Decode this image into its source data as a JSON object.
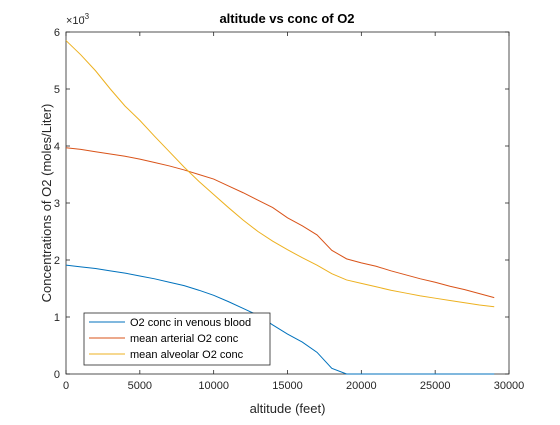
{
  "chart_data": {
    "type": "line",
    "title": "altitude vs conc of O2",
    "xlabel": "altitude (feet)",
    "ylabel": "Concentrations of O2 (moles/Liter)",
    "exponent_label": "×10",
    "exponent_power": "-3",
    "xlim": [
      0,
      30000
    ],
    "ylim": [
      0,
      6
    ],
    "xticks": [
      0,
      5000,
      10000,
      15000,
      20000,
      25000,
      30000
    ],
    "xtick_labels": [
      "0",
      "5000",
      "10000",
      "15000",
      "20000",
      "25000",
      "30000"
    ],
    "yticks": [
      0,
      1,
      2,
      3,
      4,
      5,
      6
    ],
    "ytick_labels": [
      "0",
      "1",
      "2",
      "3",
      "4",
      "5",
      "6"
    ],
    "grid": false,
    "legend_position": "bottom-left",
    "series": [
      {
        "name": "O2 conc in venous blood",
        "color": "#0072BD",
        "x": [
          0,
          1000,
          2000,
          3000,
          4000,
          5000,
          6000,
          7000,
          8000,
          9000,
          10000,
          11000,
          12000,
          13000,
          14000,
          15000,
          16000,
          17000,
          18000,
          19000,
          20000,
          21000,
          22000,
          23000,
          24000,
          25000,
          26000,
          27000,
          28000,
          29000
        ],
        "y": [
          1.91,
          1.88,
          1.85,
          1.81,
          1.77,
          1.72,
          1.67,
          1.61,
          1.55,
          1.47,
          1.38,
          1.27,
          1.15,
          1.03,
          0.86,
          0.7,
          0.56,
          0.38,
          0.1,
          0.0,
          0.0,
          0.0,
          0.0,
          0.0,
          0.0,
          0.0,
          0.0,
          0.0,
          0.0,
          0.0
        ]
      },
      {
        "name": "mean arterial O2 conc",
        "color": "#D95319",
        "x": [
          0,
          1000,
          2000,
          3000,
          4000,
          5000,
          6000,
          7000,
          8000,
          9000,
          10000,
          11000,
          12000,
          13000,
          14000,
          15000,
          16000,
          17000,
          18000,
          19000,
          20000,
          21000,
          22000,
          23000,
          24000,
          25000,
          26000,
          27000,
          28000,
          29000
        ],
        "y": [
          3.97,
          3.94,
          3.9,
          3.86,
          3.82,
          3.77,
          3.71,
          3.65,
          3.58,
          3.5,
          3.42,
          3.3,
          3.18,
          3.05,
          2.92,
          2.74,
          2.6,
          2.44,
          2.17,
          2.02,
          1.95,
          1.89,
          1.81,
          1.74,
          1.67,
          1.61,
          1.54,
          1.48,
          1.41,
          1.34
        ]
      },
      {
        "name": "mean alveolar O2 conc",
        "color": "#EDB120",
        "x": [
          0,
          1000,
          2000,
          3000,
          4000,
          5000,
          6000,
          7000,
          8000,
          9000,
          10000,
          11000,
          12000,
          13000,
          14000,
          15000,
          16000,
          17000,
          18000,
          19000,
          20000,
          21000,
          22000,
          23000,
          24000,
          25000,
          26000,
          27000,
          28000,
          29000
        ],
        "y": [
          5.85,
          5.6,
          5.32,
          5.0,
          4.7,
          4.45,
          4.17,
          3.9,
          3.63,
          3.38,
          3.15,
          2.92,
          2.7,
          2.5,
          2.33,
          2.18,
          2.04,
          1.91,
          1.76,
          1.65,
          1.59,
          1.53,
          1.47,
          1.42,
          1.37,
          1.33,
          1.29,
          1.25,
          1.21,
          1.18
        ]
      }
    ]
  }
}
